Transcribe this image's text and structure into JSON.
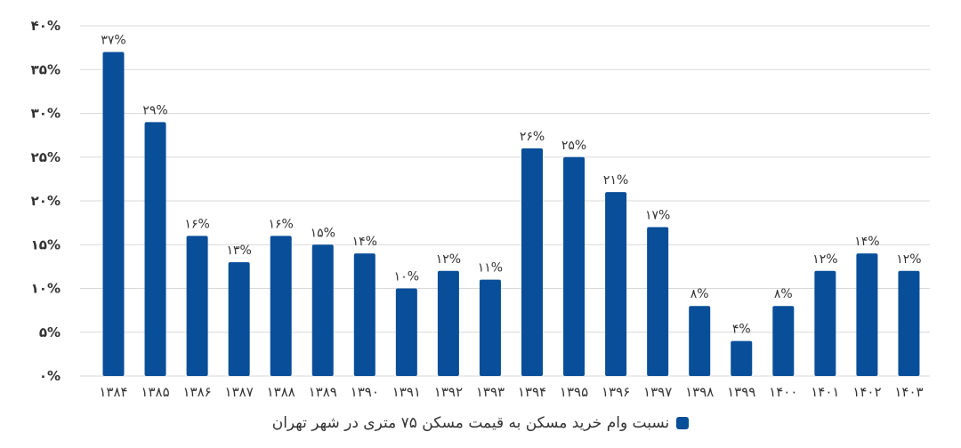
{
  "chart_data": {
    "type": "bar",
    "categories": [
      "۱۳۸۴",
      "۱۳۸۵",
      "۱۳۸۶",
      "۱۳۸۷",
      "۱۳۸۸",
      "۱۳۸۹",
      "۱۳۹۰",
      "۱۳۹۱",
      "۱۳۹۲",
      "۱۳۹۳",
      "۱۳۹۴",
      "۱۳۹۵",
      "۱۳۹۶",
      "۱۳۹۷",
      "۱۳۹۸",
      "۱۳۹۹",
      "۱۴۰۰",
      "۱۴۰۱",
      "۱۴۰۲",
      "۱۴۰۳"
    ],
    "series": [
      {
        "name": "نسبت وام خرید مسکن به قیمت مسکن ۷۵ متری در شهر تهران",
        "values": [
          37,
          29,
          16,
          13,
          16,
          15,
          14,
          10,
          12,
          11,
          26,
          25,
          21,
          17,
          8,
          4,
          8,
          12,
          14,
          12
        ],
        "data_labels": [
          "۳۷%",
          "۲۹%",
          "۱۶%",
          "۱۳%",
          "۱۶%",
          "۱۵%",
          "۱۴%",
          "۱۰%",
          "۱۲%",
          "۱۱%",
          "۲۶%",
          "۲۵%",
          "۲۱%",
          "۱۷%",
          "۸%",
          "۴%",
          "۸%",
          "۱۲%",
          "۱۴%",
          "۱۲%"
        ]
      }
    ],
    "yticks": [
      0,
      5,
      10,
      15,
      20,
      25,
      30,
      35,
      40
    ],
    "ytick_labels": [
      "۰%",
      "۵%",
      "۱۰%",
      "۱۵%",
      "۲۰%",
      "۲۵%",
      "۳۰%",
      "۳۵%",
      "۴۰%"
    ],
    "ylim": [
      0,
      40
    ],
    "grid": true,
    "legend_position": "bottom",
    "colors": {
      "bar": "#084e98",
      "grid": "#d9d9d9",
      "text": "#333333"
    }
  }
}
